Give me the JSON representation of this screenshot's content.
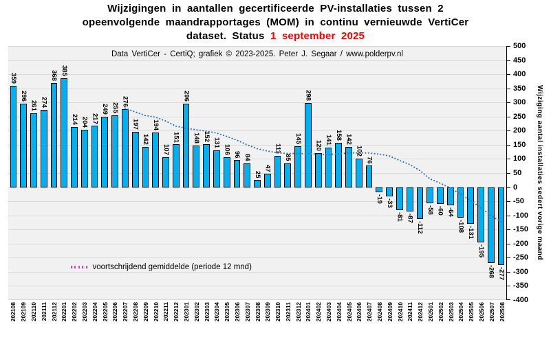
{
  "title": {
    "line1": "Wijzigingen in aantallen gecertificeerde PV-installaties tussen 2",
    "line2": "opeenvolgende maandrapportages (MOM) in continu vernieuwde VertiCer",
    "line3_prefix": "dataset. Status ",
    "status_date": "1 september 2025"
  },
  "chart_data": {
    "type": "bar",
    "subtitle": "Data VertiCer - CertiQ; grafiek © 2023-2025.  Peter J. Segaar / www.polderpv.nl",
    "ylabel_right": "Wijziging aantal installaties sedert vorige maand",
    "ylim": [
      -400,
      500
    ],
    "ytick_step": 50,
    "grid": true,
    "legend_position": "bottom-left-inside",
    "categories": [
      "202108",
      "202109",
      "202110",
      "202111",
      "202112",
      "202201",
      "202202",
      "202203",
      "202204",
      "202205",
      "202206",
      "202207",
      "202208",
      "202209",
      "202210",
      "202211",
      "202212",
      "202301",
      "202302",
      "202303",
      "202304",
      "202305",
      "202306",
      "202307",
      "202308",
      "202309",
      "202310",
      "202311",
      "202312",
      "202401",
      "202402",
      "202403",
      "202404",
      "202405",
      "202406",
      "202407",
      "202408",
      "202409",
      "202410",
      "202411",
      "202412",
      "202501",
      "202502",
      "202503",
      "202504",
      "202505",
      "202506",
      "202507",
      "202508"
    ],
    "values": [
      359,
      296,
      261,
      274,
      368,
      385,
      214,
      204,
      217,
      249,
      255,
      276,
      197,
      142,
      194,
      107,
      151,
      296,
      148,
      152,
      131,
      106,
      96,
      84,
      25,
      47,
      111,
      85,
      145,
      298,
      120,
      141,
      158,
      142,
      102,
      76,
      -19,
      -33,
      -81,
      -87,
      -112,
      -58,
      -60,
      -64,
      -108,
      -131,
      -195,
      -268,
      -277
    ],
    "moving_average": {
      "period_months": 12,
      "legend_label": "voortschrijdend gemiddelde  (periode 12 mnd)"
    },
    "colors": {
      "bar": "#00b0f0",
      "bar_border": "#000000",
      "ma_line": "#2e75b6",
      "legend_dots": "#cc44cc",
      "status_date": "#ff0000",
      "plot_bg": "#f1f1f1",
      "grid": "#d9d9d9"
    }
  }
}
